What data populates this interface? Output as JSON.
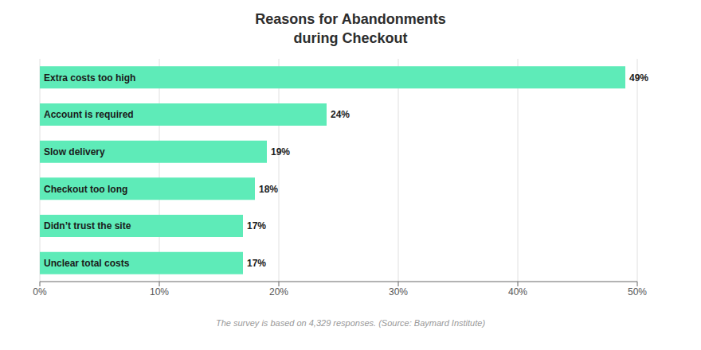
{
  "chart_data": {
    "type": "bar",
    "orientation": "horizontal",
    "title": "Reasons for Abandonments\nduring Checkout",
    "categories": [
      "Extra costs too high",
      "Account is required",
      "Slow delivery",
      "Checkout too long",
      "Didn’t trust the site",
      "Unclear total costs"
    ],
    "values": [
      49,
      24,
      19,
      18,
      17,
      17
    ],
    "value_labels": [
      "49%",
      "24%",
      "19%",
      "18%",
      "17%",
      "17%"
    ],
    "data_labels": true,
    "color": "#5EEBB8",
    "xlim": [
      0,
      50
    ],
    "xticks": [
      {
        "value": 0,
        "label": "0%"
      },
      {
        "value": 10,
        "label": "10%"
      },
      {
        "value": 20,
        "label": "20%"
      },
      {
        "value": 30,
        "label": "30%"
      },
      {
        "value": 40,
        "label": "40%"
      },
      {
        "value": 50,
        "label": "50%"
      }
    ],
    "grid": true,
    "annotations": [
      "The survey is based on 4,329 responses. (Source: Baymard Institute)"
    ]
  }
}
